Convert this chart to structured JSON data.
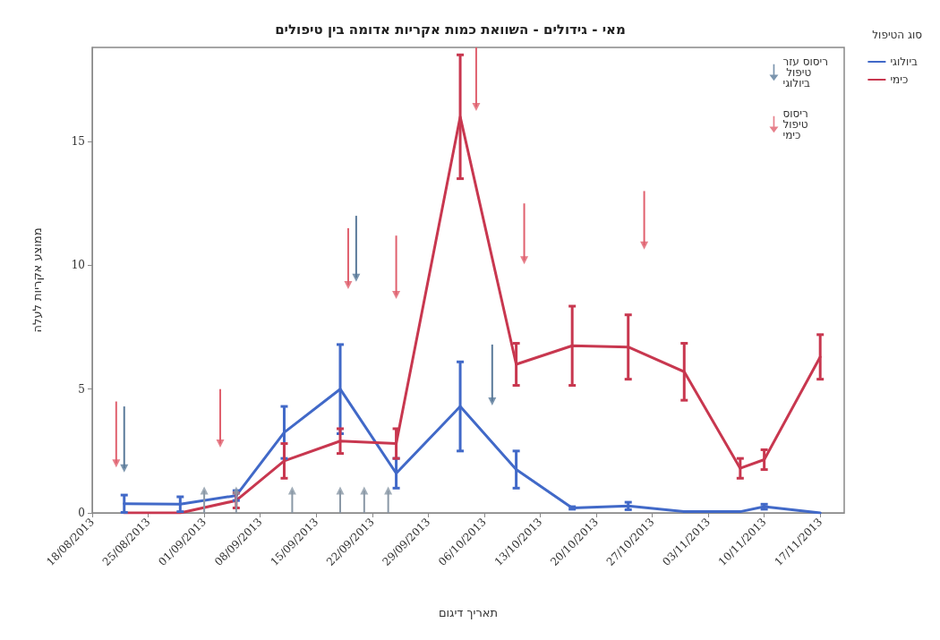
{
  "chart_data": {
    "type": "line",
    "title": "מאי - גידולים - השוואת כמות אקריות אדומה בין טיפולים",
    "xlabel": "תאריך דיגום",
    "ylabel": "ממוצע אקריות לעלה",
    "legend_title": "סוג הטיפול",
    "legend": "right",
    "grid": false,
    "x": [
      "2013-08-22",
      "2013-08-29",
      "2013-09-05",
      "2013-09-11",
      "2013-09-18",
      "2013-09-25",
      "2013-10-03",
      "2013-10-10",
      "2013-10-17",
      "2013-10-24",
      "2013-10-31",
      "2013-11-07",
      "2013-11-10",
      "2013-11-17"
    ],
    "xlim": [
      "2013-08-18",
      "2013-11-20"
    ],
    "xticks": [
      {
        "value": "2013-08-18",
        "label": "18/08/2013"
      },
      {
        "value": "2013-08-25",
        "label": "25/08/2013"
      },
      {
        "value": "2013-09-01",
        "label": "01/09/2013"
      },
      {
        "value": "2013-09-08",
        "label": "08/09/2013"
      },
      {
        "value": "2013-09-15",
        "label": "15/09/2013"
      },
      {
        "value": "2013-09-22",
        "label": "22/09/2013"
      },
      {
        "value": "2013-09-29",
        "label": "29/09/2013"
      },
      {
        "value": "2013-10-06",
        "label": "06/10/2013"
      },
      {
        "value": "2013-10-13",
        "label": "13/10/2013"
      },
      {
        "value": "2013-10-20",
        "label": "20/10/2013"
      },
      {
        "value": "2013-10-27",
        "label": "27/10/2013"
      },
      {
        "value": "2013-11-03",
        "label": "03/11/2013"
      },
      {
        "value": "2013-11-10",
        "label": "10/11/2013"
      },
      {
        "value": "2013-11-17",
        "label": "17/11/2013"
      }
    ],
    "ylim": [
      0,
      18.8
    ],
    "yticks": [
      0,
      5,
      10,
      15
    ],
    "series": [
      {
        "name": "ביולוגי",
        "color": "#4169c8",
        "values": [
          0.37,
          0.35,
          0.7,
          3.25,
          5.0,
          1.6,
          4.3,
          1.75,
          0.2,
          0.28,
          0.05,
          0.05,
          0.25,
          0
        ],
        "errors": [
          0.35,
          0.3,
          0.2,
          1.05,
          1.8,
          0.6,
          1.8,
          0.75,
          0.05,
          0.15,
          null,
          null,
          0.1,
          null
        ]
      },
      {
        "name": "כימי",
        "color": "#c8374f",
        "values": [
          0,
          0,
          0.5,
          2.1,
          2.9,
          2.8,
          16.0,
          6.0,
          6.75,
          6.7,
          5.7,
          1.8,
          2.15,
          6.3
        ],
        "errors": [
          null,
          null,
          0.3,
          0.7,
          0.5,
          0.6,
          2.5,
          0.85,
          1.6,
          1.3,
          1.15,
          0.4,
          0.4,
          0.9
        ]
      },
      {
        "name": "ריסוס עזר טיפול ביולוגי",
        "type": "scatter",
        "marker": "triangle",
        "color": "#5a7a9a",
        "x": [
          "2013-08-22",
          "2013-09-20",
          "2013-10-07",
          "2013-09-01",
          "2013-09-05",
          "2013-09-12",
          "2013-09-18",
          "2013-09-21",
          "2013-09-24"
        ],
        "values": [
          1.8,
          9.5,
          4.5,
          0.9,
          0.9,
          0.9,
          0.9,
          0.9,
          0.9
        ],
        "errors": [
          [
            1.8,
            4.3
          ],
          [
            9.5,
            12.0
          ],
          [
            4.5,
            6.8
          ],
          [
            0,
            0.9
          ],
          [
            0,
            0.9
          ],
          [
            0,
            0.9
          ],
          [
            0,
            0.9
          ],
          [
            0,
            0.9
          ],
          [
            0,
            0.9
          ]
        ],
        "colors": [
          "#5a7a9a",
          "#5a7a9a",
          "#5a7a9a",
          "#8a98a6",
          "#8a98a6",
          "#8a98a6",
          "#8a98a6",
          "#8a98a6",
          "#8a98a6"
        ]
      },
      {
        "name": "ריסוס טיפול כימי",
        "type": "scatter",
        "marker": "triangle",
        "color": "#e0606e",
        "x": [
          "2013-08-21",
          "2013-09-03",
          "2013-09-19",
          "2013-09-25",
          "2013-10-05",
          "2013-10-11",
          "2013-10-26"
        ],
        "values": [
          2.0,
          2.8,
          9.2,
          8.8,
          16.4,
          10.2,
          10.8
        ],
        "errors": [
          [
            2.0,
            4.5
          ],
          [
            2.8,
            5.0
          ],
          [
            9.2,
            11.5
          ],
          [
            8.8,
            11.2
          ],
          [
            16.4,
            18.8
          ],
          [
            10.2,
            12.5
          ],
          [
            10.8,
            13.0
          ]
        ]
      }
    ]
  }
}
